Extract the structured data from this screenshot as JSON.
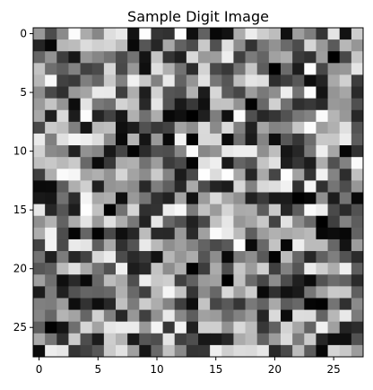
{
  "chart_data": {
    "type": "heatmap",
    "title": "Sample Digit Image",
    "xlabel": "",
    "ylabel": "",
    "rows": 28,
    "cols": 28,
    "xlim": [
      -0.5,
      27.5
    ],
    "ylim": [
      27.5,
      -0.5
    ],
    "x_ticks": [
      0,
      5,
      10,
      15,
      20,
      25
    ],
    "y_ticks": [
      0,
      5,
      10,
      15,
      20,
      25
    ],
    "colormap": "gray",
    "colormap_colors": {
      "low": "#000000",
      "high": "#ffffff"
    },
    "value_range": [
      0,
      1
    ],
    "grid": false,
    "random_seed": 7
  }
}
